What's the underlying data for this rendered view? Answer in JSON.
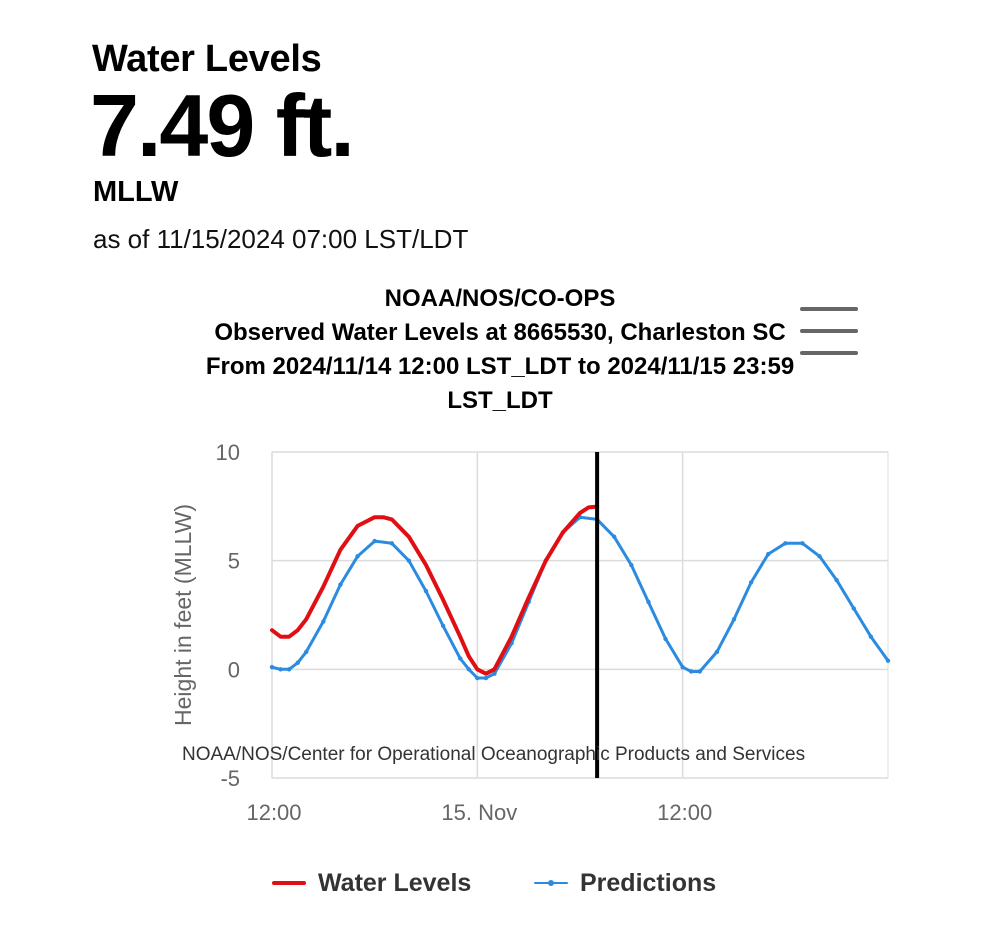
{
  "header": {
    "title": "Water Levels",
    "value": "7.49 ft.",
    "datum": "MLLW",
    "as_of": "as of 11/15/2024 07:00 LST/LDT"
  },
  "colors": {
    "water_levels": "#e00f14",
    "predictions": "#2b8be0",
    "grid": "#dcdcdc",
    "now_line": "#000000",
    "axis_text": "#666666"
  },
  "chart_data": {
    "type": "line",
    "title_lines": [
      "NOAA/NOS/CO-OPS",
      "Observed Water Levels at 8665530, Charleston SC",
      "From 2024/11/14 12:00 LST_LDT to 2024/11/15 23:59",
      "LST_LDT"
    ],
    "ylabel": "Height in feet (MLLW)",
    "xlabel": "",
    "ylim": [
      -5,
      10
    ],
    "yticks": [
      10,
      5,
      0,
      -5
    ],
    "xlim_hours": [
      0,
      36
    ],
    "xticks": [
      {
        "hour": 0,
        "label": "12:00"
      },
      {
        "hour": 12,
        "label": "15. Nov"
      },
      {
        "hour": 24,
        "label": "12:00"
      }
    ],
    "now_marker_hour": 19,
    "credit": "NOAA/NOS/Center for Operational Oceanographic Products and Services",
    "series": [
      {
        "name": "Water Levels",
        "hours": [
          0,
          0.5,
          1,
          1.5,
          2,
          3,
          4,
          5,
          6,
          6.5,
          7,
          8,
          9,
          10,
          11,
          11.5,
          12,
          12.5,
          13,
          14,
          15,
          16,
          17,
          18,
          18.5,
          19
        ],
        "values": [
          1.8,
          1.5,
          1.5,
          1.8,
          2.3,
          3.8,
          5.5,
          6.6,
          7.0,
          7.0,
          6.9,
          6.1,
          4.8,
          3.2,
          1.5,
          0.6,
          0.0,
          -0.2,
          0.0,
          1.5,
          3.3,
          5.0,
          6.3,
          7.2,
          7.45,
          7.49
        ]
      },
      {
        "name": "Predictions",
        "hours": [
          0,
          0.5,
          1,
          1.5,
          2,
          3,
          4,
          5,
          6,
          7,
          8,
          9,
          10,
          11,
          11.5,
          12,
          12.5,
          13,
          14,
          15,
          16,
          17,
          18,
          19,
          20,
          21,
          22,
          23,
          24,
          24.5,
          25,
          26,
          27,
          28,
          29,
          30,
          31,
          32,
          33,
          34,
          35,
          36
        ],
        "values": [
          0.1,
          0.0,
          0.0,
          0.3,
          0.8,
          2.2,
          3.9,
          5.2,
          5.9,
          5.8,
          5.0,
          3.6,
          2.0,
          0.5,
          0.0,
          -0.4,
          -0.4,
          -0.2,
          1.2,
          3.1,
          5.0,
          6.3,
          7.0,
          6.9,
          6.1,
          4.8,
          3.1,
          1.4,
          0.1,
          -0.1,
          -0.1,
          0.8,
          2.3,
          4.0,
          5.3,
          5.8,
          5.8,
          5.2,
          4.1,
          2.8,
          1.5,
          0.4
        ]
      }
    ]
  },
  "legend": [
    {
      "label": "Water Levels"
    },
    {
      "label": "Predictions"
    }
  ]
}
